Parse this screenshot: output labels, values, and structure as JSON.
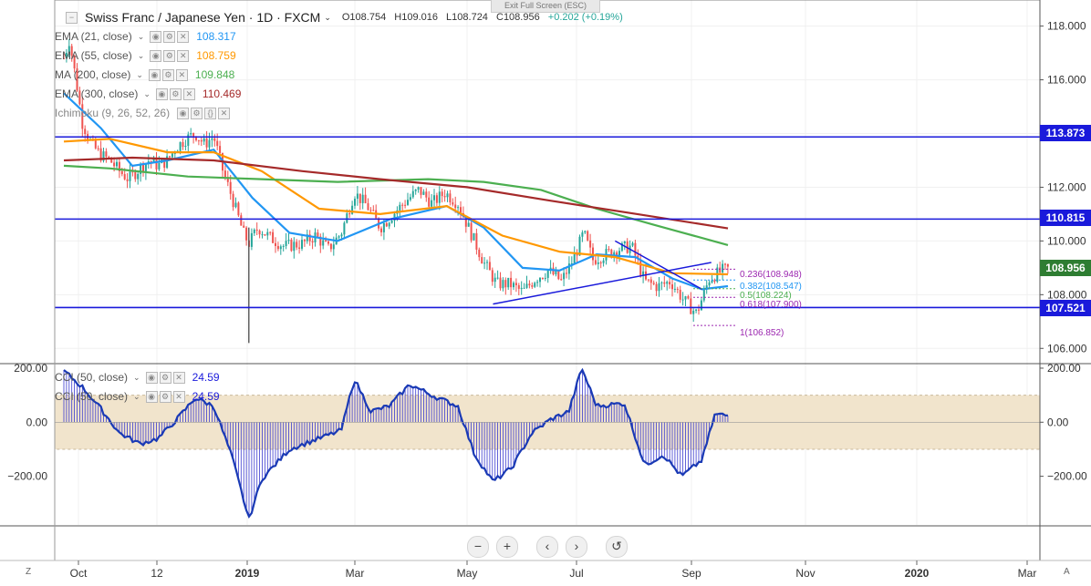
{
  "header": {
    "exit_full_screen": "Exit Full Screen (ESC)",
    "symbol_title": "Swiss Franc / Japanese Yen · 1D · FXCM",
    "ohlc": {
      "open": "O108.754",
      "high": "H109.016",
      "low": "L108.724",
      "close": "C108.956",
      "change": "+0.202 (+0.19%)"
    }
  },
  "indicators": [
    {
      "label": "EMA (21, close)",
      "value": "108.317",
      "color": "#2196f3"
    },
    {
      "label": "EMA (55, close)",
      "value": "108.759",
      "color": "#ff9800"
    },
    {
      "label": "MA (200, close)",
      "value": "109.848",
      "color": "#4caf50"
    },
    {
      "label": "EMA (300, close)",
      "value": "110.469",
      "color": "#a52a2a"
    },
    {
      "label": "Ichimoku (9, 26, 52, 26)",
      "value": "",
      "color": "#777777"
    }
  ],
  "cci_legends": [
    {
      "label": "CCI (50, close)",
      "value": "24.59"
    },
    {
      "label": "CCI (50, close)",
      "value": "24.59"
    }
  ],
  "price_tags": [
    {
      "value": "113.873",
      "color": "#1a1adb"
    },
    {
      "value": "110.815",
      "color": "#1a1adb"
    },
    {
      "value": "108.956",
      "color": "#2e7d32"
    },
    {
      "value": "107.521",
      "color": "#1a1adb"
    }
  ],
  "fib_levels": [
    {
      "label": "0.236(108.948)",
      "color": "#9c27b0"
    },
    {
      "label": "0.382(108.547)",
      "color": "#2196f3"
    },
    {
      "label": "0.5(108.224)",
      "color": "#4caf50"
    },
    {
      "label": "0.618(107.900)",
      "color": "#9c27b0"
    },
    {
      "label": "1(106.852)",
      "color": "#9c27b0"
    }
  ],
  "corner_labels": {
    "left": "Z",
    "right": "A"
  },
  "nav_buttons": [
    "−",
    "+",
    "‹",
    "›",
    "↺"
  ],
  "chart_data": [
    {
      "type": "candlestick",
      "title": "Swiss Franc / Japanese Yen · 1D · FXCM",
      "y_axis_ticks": [
        "118.000",
        "116.000",
        "114.000",
        "112.000",
        "110.000",
        "108.000",
        "106.000"
      ],
      "x_axis_ticks": [
        "Oct",
        "12",
        "2019",
        "Mar",
        "May",
        "Jul",
        "Sep",
        "Nov",
        "2020",
        "Mar"
      ],
      "ylim": [
        105.5,
        118.7
      ],
      "horizontal_levels": [
        113.873,
        110.815,
        107.521
      ],
      "close_path": [
        [
          "2018-09-25",
          116.8
        ],
        [
          "2018-09-28",
          117.5
        ],
        [
          "2018-10-02",
          115.8
        ],
        [
          "2018-10-05",
          114.4
        ],
        [
          "2018-10-10",
          113.6
        ],
        [
          "2018-10-15",
          113.2
        ],
        [
          "2018-10-20",
          113.0
        ],
        [
          "2018-10-25",
          112.6
        ],
        [
          "2018-10-30",
          112.3
        ],
        [
          "2018-11-05",
          112.7
        ],
        [
          "2018-11-10",
          113.0
        ],
        [
          "2018-11-15",
          112.8
        ],
        [
          "2018-11-20",
          113.0
        ],
        [
          "2018-11-25",
          113.5
        ],
        [
          "2018-11-30",
          113.8
        ],
        [
          "2018-12-05",
          114.0
        ],
        [
          "2018-12-10",
          113.6
        ],
        [
          "2018-12-15",
          113.9
        ],
        [
          "2018-12-20",
          112.6
        ],
        [
          "2018-12-25",
          111.6
        ],
        [
          "2018-12-31",
          110.3
        ],
        [
          "2019-01-03",
          109.9
        ],
        [
          "2019-01-08",
          110.5
        ],
        [
          "2019-01-15",
          110.1
        ],
        [
          "2019-01-22",
          109.8
        ],
        [
          "2019-02-01",
          109.9
        ],
        [
          "2019-02-08",
          110.2
        ],
        [
          "2019-02-15",
          109.7
        ],
        [
          "2019-02-22",
          110.3
        ],
        [
          "2019-03-01",
          111.8
        ],
        [
          "2019-03-08",
          111.3
        ],
        [
          "2019-03-15",
          110.5
        ],
        [
          "2019-03-22",
          111.0
        ],
        [
          "2019-03-29",
          111.5
        ],
        [
          "2019-04-05",
          111.9
        ],
        [
          "2019-04-12",
          111.4
        ],
        [
          "2019-04-19",
          111.8
        ],
        [
          "2019-04-26",
          111.4
        ],
        [
          "2019-05-03",
          110.3
        ],
        [
          "2019-05-10",
          109.2
        ],
        [
          "2019-05-17",
          108.4
        ],
        [
          "2019-05-24",
          108.4
        ],
        [
          "2019-05-31",
          108.1
        ],
        [
          "2019-06-07",
          108.6
        ],
        [
          "2019-06-14",
          108.9
        ],
        [
          "2019-06-21",
          108.5
        ],
        [
          "2019-06-28",
          109.4
        ],
        [
          "2019-07-03",
          110.3
        ],
        [
          "2019-07-08",
          109.3
        ],
        [
          "2019-07-15",
          109.5
        ],
        [
          "2019-07-22",
          109.7
        ],
        [
          "2019-07-29",
          109.8
        ],
        [
          "2019-08-05",
          108.5
        ],
        [
          "2019-08-12",
          108.3
        ],
        [
          "2019-08-19",
          108.5
        ],
        [
          "2019-08-26",
          107.8
        ],
        [
          "2019-09-02",
          107.3
        ],
        [
          "2019-09-09",
          108.6
        ],
        [
          "2019-09-16",
          108.9
        ],
        [
          "2019-09-19",
          108.956
        ]
      ],
      "spike_low": [
        "2019-01-03",
        106.2
      ],
      "series": [
        {
          "name": "EMA (21, close)",
          "values": [
            [
              "2018-09-25",
              115.5
            ],
            [
              "2018-10-15",
              114.2
            ],
            [
              "2018-11-01",
              112.8
            ],
            [
              "2018-11-20",
              113.0
            ],
            [
              "2018-12-15",
              113.4
            ],
            [
              "2019-01-05",
              111.6
            ],
            [
              "2019-01-25",
              110.3
            ],
            [
              "2019-02-20",
              110.0
            ],
            [
              "2019-03-20",
              110.8
            ],
            [
              "2019-04-20",
              111.3
            ],
            [
              "2019-05-10",
              110.5
            ],
            [
              "2019-05-31",
              109.0
            ],
            [
              "2019-06-20",
              108.9
            ],
            [
              "2019-07-10",
              109.5
            ],
            [
              "2019-07-31",
              109.4
            ],
            [
              "2019-08-20",
              108.6
            ],
            [
              "2019-09-05",
              108.2
            ],
            [
              "2019-09-19",
              108.317
            ]
          ]
        },
        {
          "name": "EMA (55, close)",
          "values": [
            [
              "2018-09-25",
              113.7
            ],
            [
              "2018-10-20",
              113.8
            ],
            [
              "2018-11-20",
              113.3
            ],
            [
              "2018-12-15",
              113.3
            ],
            [
              "2019-01-10",
              112.6
            ],
            [
              "2019-02-10",
              111.2
            ],
            [
              "2019-03-15",
              111.0
            ],
            [
              "2019-04-20",
              111.3
            ],
            [
              "2019-05-20",
              110.2
            ],
            [
              "2019-06-20",
              109.6
            ],
            [
              "2019-07-20",
              109.4
            ],
            [
              "2019-08-20",
              108.8
            ],
            [
              "2019-09-19",
              108.759
            ]
          ]
        },
        {
          "name": "MA (200, close)",
          "values": [
            [
              "2018-09-25",
              112.8
            ],
            [
              "2018-10-20",
              112.7
            ],
            [
              "2018-12-01",
              112.4
            ],
            [
              "2019-01-10",
              112.3
            ],
            [
              "2019-02-20",
              112.2
            ],
            [
              "2019-04-10",
              112.3
            ],
            [
              "2019-05-10",
              112.2
            ],
            [
              "2019-06-10",
              111.9
            ],
            [
              "2019-07-10",
              111.2
            ],
            [
              "2019-08-10",
              110.6
            ],
            [
              "2019-09-19",
              109.848
            ]
          ]
        },
        {
          "name": "EMA (300, close)",
          "values": [
            [
              "2018-09-25",
              113.0
            ],
            [
              "2018-11-01",
              113.1
            ],
            [
              "2018-12-15",
              113.0
            ],
            [
              "2019-02-01",
              112.6
            ],
            [
              "2019-03-15",
              112.3
            ],
            [
              "2019-05-01",
              112.0
            ],
            [
              "2019-06-15",
              111.5
            ],
            [
              "2019-08-01",
              111.0
            ],
            [
              "2019-09-19",
              110.469
            ]
          ]
        }
      ]
    },
    {
      "type": "bar+line",
      "title": "CCI (50, close)",
      "y_axis_ticks": [
        "200.00",
        "0.00",
        "−200.00"
      ],
      "ylim": [
        -380,
        210
      ],
      "band": [
        -100,
        100
      ],
      "values": [
        [
          "2018-09-25",
          190
        ],
        [
          "2018-10-05",
          130
        ],
        [
          "2018-10-15",
          50
        ],
        [
          "2018-10-25",
          -40
        ],
        [
          "2018-11-05",
          -80
        ],
        [
          "2018-11-15",
          -60
        ],
        [
          "2018-11-25",
          10
        ],
        [
          "2018-12-05",
          90
        ],
        [
          "2018-12-15",
          60
        ],
        [
          "2018-12-25",
          -130
        ],
        [
          "2019-01-03",
          -360
        ],
        [
          "2019-01-10",
          -210
        ],
        [
          "2019-01-25",
          -100
        ],
        [
          "2019-02-10",
          -60
        ],
        [
          "2019-02-22",
          -30
        ],
        [
          "2019-03-01",
          160
        ],
        [
          "2019-03-10",
          40
        ],
        [
          "2019-03-20",
          60
        ],
        [
          "2019-03-31",
          140
        ],
        [
          "2019-04-15",
          90
        ],
        [
          "2019-04-26",
          60
        ],
        [
          "2019-05-05",
          -120
        ],
        [
          "2019-05-15",
          -220
        ],
        [
          "2019-05-25",
          -170
        ],
        [
          "2019-06-05",
          -40
        ],
        [
          "2019-06-15",
          10
        ],
        [
          "2019-06-25",
          40
        ],
        [
          "2019-07-02",
          200
        ],
        [
          "2019-07-10",
          60
        ],
        [
          "2019-07-25",
          70
        ],
        [
          "2019-08-05",
          -160
        ],
        [
          "2019-08-15",
          -120
        ],
        [
          "2019-08-25",
          -200
        ],
        [
          "2019-09-05",
          -140
        ],
        [
          "2019-09-12",
          30
        ],
        [
          "2019-09-19",
          24.59
        ]
      ]
    }
  ]
}
